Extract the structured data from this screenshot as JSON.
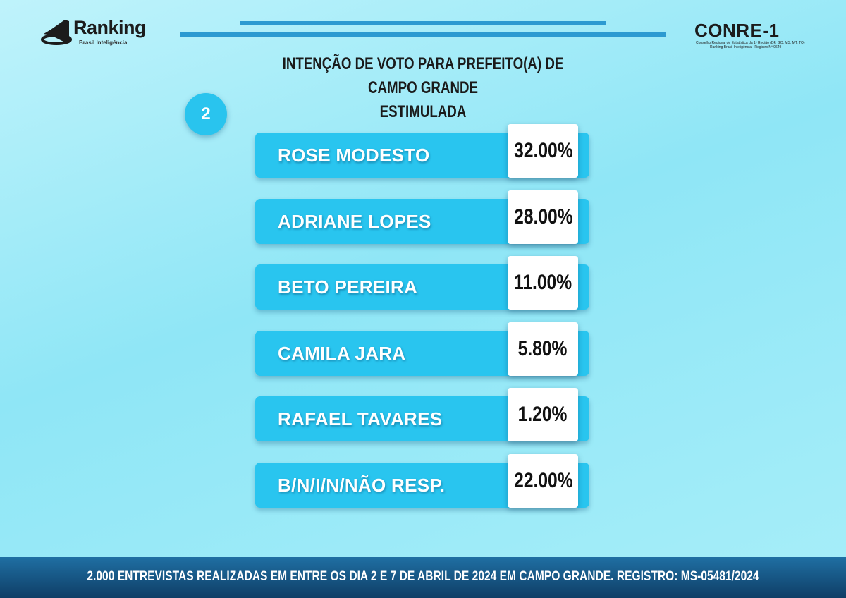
{
  "header": {
    "ranking_logo": {
      "name": "Ranking",
      "tagline": "Brasil Inteligência"
    },
    "conre_logo": {
      "name": "CONRE-1",
      "line1": "Conselho Regional de Estatística da 1ª Região (DF, GO, MS, MT, TO)",
      "line2": "Ranking Brasil Inteligência - Registro Nº 9649"
    }
  },
  "title": {
    "line1": "INTENÇÃO DE VOTO PARA PREFEITO(A) DE CAMPO GRANDE",
    "line2": "ESTIMULADA"
  },
  "badge": "2",
  "chart_data": {
    "type": "bar",
    "categories": [
      "ROSE MODESTO",
      "ADRIANE LOPES",
      "BETO PEREIRA",
      "CAMILA JARA",
      "RAFAEL TAVARES",
      "B/N/I/N/NÃO RESP."
    ],
    "values": [
      32.0,
      28.0,
      11.0,
      5.8,
      1.2,
      22.0
    ],
    "labels": [
      "32.00%",
      "28.00%",
      "11.00%",
      "5.80%",
      "1.20%",
      "22.00%"
    ],
    "title": "INTENÇÃO DE VOTO PARA PREFEITO(A) DE CAMPO GRANDE",
    "subtitle": "ESTIMULADA"
  },
  "colors": {
    "bar": "#29c5ef",
    "value_box": "#ffffff",
    "footer": "#0f3e66",
    "accent_line": "#2c9ad1"
  },
  "footer": {
    "text": "2.000 ENTREVISTAS REALIZADAS EM ENTRE OS DIA 2 E 7 DE ABRIL DE 2024 EM CAMPO GRANDE. REGISTRO: MS-05481/2024"
  }
}
